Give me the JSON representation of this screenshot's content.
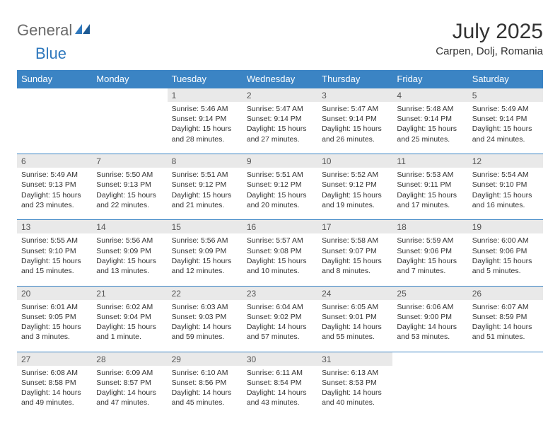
{
  "logo": {
    "general": "General",
    "blue": "Blue"
  },
  "title": "July 2025",
  "location": "Carpen, Dolj, Romania",
  "colors": {
    "headerBar": "#3b84c4",
    "dayNumBg": "#e9e9e9",
    "text": "#333333",
    "logoGray": "#6a6a6a",
    "logoBlue": "#2f78bd"
  },
  "dow": [
    "Sunday",
    "Monday",
    "Tuesday",
    "Wednesday",
    "Thursday",
    "Friday",
    "Saturday"
  ],
  "weeks": [
    [
      null,
      null,
      {
        "n": "1",
        "sr": "5:46 AM",
        "ss": "9:14 PM",
        "d1": "15 hours",
        "d2": "and 28 minutes."
      },
      {
        "n": "2",
        "sr": "5:47 AM",
        "ss": "9:14 PM",
        "d1": "15 hours",
        "d2": "and 27 minutes."
      },
      {
        "n": "3",
        "sr": "5:47 AM",
        "ss": "9:14 PM",
        "d1": "15 hours",
        "d2": "and 26 minutes."
      },
      {
        "n": "4",
        "sr": "5:48 AM",
        "ss": "9:14 PM",
        "d1": "15 hours",
        "d2": "and 25 minutes."
      },
      {
        "n": "5",
        "sr": "5:49 AM",
        "ss": "9:14 PM",
        "d1": "15 hours",
        "d2": "and 24 minutes."
      }
    ],
    [
      {
        "n": "6",
        "sr": "5:49 AM",
        "ss": "9:13 PM",
        "d1": "15 hours",
        "d2": "and 23 minutes."
      },
      {
        "n": "7",
        "sr": "5:50 AM",
        "ss": "9:13 PM",
        "d1": "15 hours",
        "d2": "and 22 minutes."
      },
      {
        "n": "8",
        "sr": "5:51 AM",
        "ss": "9:12 PM",
        "d1": "15 hours",
        "d2": "and 21 minutes."
      },
      {
        "n": "9",
        "sr": "5:51 AM",
        "ss": "9:12 PM",
        "d1": "15 hours",
        "d2": "and 20 minutes."
      },
      {
        "n": "10",
        "sr": "5:52 AM",
        "ss": "9:12 PM",
        "d1": "15 hours",
        "d2": "and 19 minutes."
      },
      {
        "n": "11",
        "sr": "5:53 AM",
        "ss": "9:11 PM",
        "d1": "15 hours",
        "d2": "and 17 minutes."
      },
      {
        "n": "12",
        "sr": "5:54 AM",
        "ss": "9:10 PM",
        "d1": "15 hours",
        "d2": "and 16 minutes."
      }
    ],
    [
      {
        "n": "13",
        "sr": "5:55 AM",
        "ss": "9:10 PM",
        "d1": "15 hours",
        "d2": "and 15 minutes."
      },
      {
        "n": "14",
        "sr": "5:56 AM",
        "ss": "9:09 PM",
        "d1": "15 hours",
        "d2": "and 13 minutes."
      },
      {
        "n": "15",
        "sr": "5:56 AM",
        "ss": "9:09 PM",
        "d1": "15 hours",
        "d2": "and 12 minutes."
      },
      {
        "n": "16",
        "sr": "5:57 AM",
        "ss": "9:08 PM",
        "d1": "15 hours",
        "d2": "and 10 minutes."
      },
      {
        "n": "17",
        "sr": "5:58 AM",
        "ss": "9:07 PM",
        "d1": "15 hours",
        "d2": "and 8 minutes."
      },
      {
        "n": "18",
        "sr": "5:59 AM",
        "ss": "9:06 PM",
        "d1": "15 hours",
        "d2": "and 7 minutes."
      },
      {
        "n": "19",
        "sr": "6:00 AM",
        "ss": "9:06 PM",
        "d1": "15 hours",
        "d2": "and 5 minutes."
      }
    ],
    [
      {
        "n": "20",
        "sr": "6:01 AM",
        "ss": "9:05 PM",
        "d1": "15 hours",
        "d2": "and 3 minutes."
      },
      {
        "n": "21",
        "sr": "6:02 AM",
        "ss": "9:04 PM",
        "d1": "15 hours",
        "d2": "and 1 minute."
      },
      {
        "n": "22",
        "sr": "6:03 AM",
        "ss": "9:03 PM",
        "d1": "14 hours",
        "d2": "and 59 minutes."
      },
      {
        "n": "23",
        "sr": "6:04 AM",
        "ss": "9:02 PM",
        "d1": "14 hours",
        "d2": "and 57 minutes."
      },
      {
        "n": "24",
        "sr": "6:05 AM",
        "ss": "9:01 PM",
        "d1": "14 hours",
        "d2": "and 55 minutes."
      },
      {
        "n": "25",
        "sr": "6:06 AM",
        "ss": "9:00 PM",
        "d1": "14 hours",
        "d2": "and 53 minutes."
      },
      {
        "n": "26",
        "sr": "6:07 AM",
        "ss": "8:59 PM",
        "d1": "14 hours",
        "d2": "and 51 minutes."
      }
    ],
    [
      {
        "n": "27",
        "sr": "6:08 AM",
        "ss": "8:58 PM",
        "d1": "14 hours",
        "d2": "and 49 minutes."
      },
      {
        "n": "28",
        "sr": "6:09 AM",
        "ss": "8:57 PM",
        "d1": "14 hours",
        "d2": "and 47 minutes."
      },
      {
        "n": "29",
        "sr": "6:10 AM",
        "ss": "8:56 PM",
        "d1": "14 hours",
        "d2": "and 45 minutes."
      },
      {
        "n": "30",
        "sr": "6:11 AM",
        "ss": "8:54 PM",
        "d1": "14 hours",
        "d2": "and 43 minutes."
      },
      {
        "n": "31",
        "sr": "6:13 AM",
        "ss": "8:53 PM",
        "d1": "14 hours",
        "d2": "and 40 minutes."
      },
      null,
      null
    ]
  ],
  "labels": {
    "sunrise": "Sunrise: ",
    "sunset": "Sunset: ",
    "daylight": "Daylight: "
  }
}
